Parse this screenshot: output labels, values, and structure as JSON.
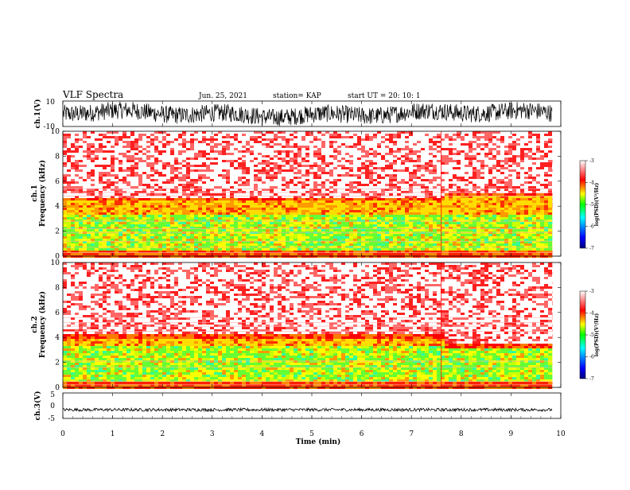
{
  "header": {
    "title": "VLF Spectra",
    "date": "Jun. 25, 2021",
    "station": "station= KAP",
    "start": "start UT =  20: 10: 1"
  },
  "chart_data": [
    {
      "type": "line",
      "name": "ch1-waveform",
      "ylabel": "ch.1(V)",
      "ylim": [
        -10,
        10
      ],
      "yticks": [
        "10",
        "-10"
      ],
      "xlim": [
        0,
        10
      ],
      "data_end": 9.83,
      "color": "#000000"
    },
    {
      "type": "heatmap",
      "name": "ch1-spectrogram",
      "ylabel": "ch.1\nFrequency (kHz)",
      "ylim": [
        0,
        10
      ],
      "yticks": [
        "0",
        "2",
        "4",
        "6",
        "8",
        "10"
      ],
      "xlim": [
        0,
        10
      ],
      "data_end": 9.83,
      "event_time": 7.6,
      "colorbar": {
        "label": "log(PSD)(V²/Hz)",
        "range": [
          -7,
          -3
        ],
        "ticks": [
          "-3",
          "-4",
          "-5",
          "-6",
          "-7"
        ]
      }
    },
    {
      "type": "heatmap",
      "name": "ch2-spectrogram",
      "ylabel": "ch.2\nFrequency (kHz)",
      "ylim": [
        0,
        10
      ],
      "yticks": [
        "0",
        "2",
        "4",
        "6",
        "8",
        "10"
      ],
      "xlim": [
        0,
        10
      ],
      "data_end": 9.83,
      "event_time": 7.6,
      "colorbar": {
        "label": "log(PSD)(V²/Hz)",
        "range": [
          -7,
          -3
        ],
        "ticks": [
          "-3",
          "-4",
          "-5",
          "-6",
          "-7"
        ]
      }
    },
    {
      "type": "line",
      "name": "ch3-waveform",
      "ylabel": "ch.3(V)",
      "ylim": [
        -5,
        5
      ],
      "yticks": [
        "5",
        "0",
        "-5"
      ],
      "xlim": [
        0,
        10
      ],
      "data_end": 9.83,
      "color": "#000000"
    }
  ],
  "xaxis": {
    "label": "Time (min)",
    "ticks": [
      "0",
      "1",
      "2",
      "3",
      "4",
      "5",
      "6",
      "7",
      "8",
      "9",
      "10"
    ]
  },
  "colorbar_labels": {
    "top": "-3",
    "m4": "-4",
    "m5": "-5",
    "m6": "-6",
    "bottom": "-7",
    "title": "log(PSD)(V²/Hz)"
  },
  "colorscale": [
    "#00007f",
    "#0000ff",
    "#00ffff",
    "#00ff00",
    "#ffff00",
    "#ff0000",
    "#ffffff"
  ]
}
